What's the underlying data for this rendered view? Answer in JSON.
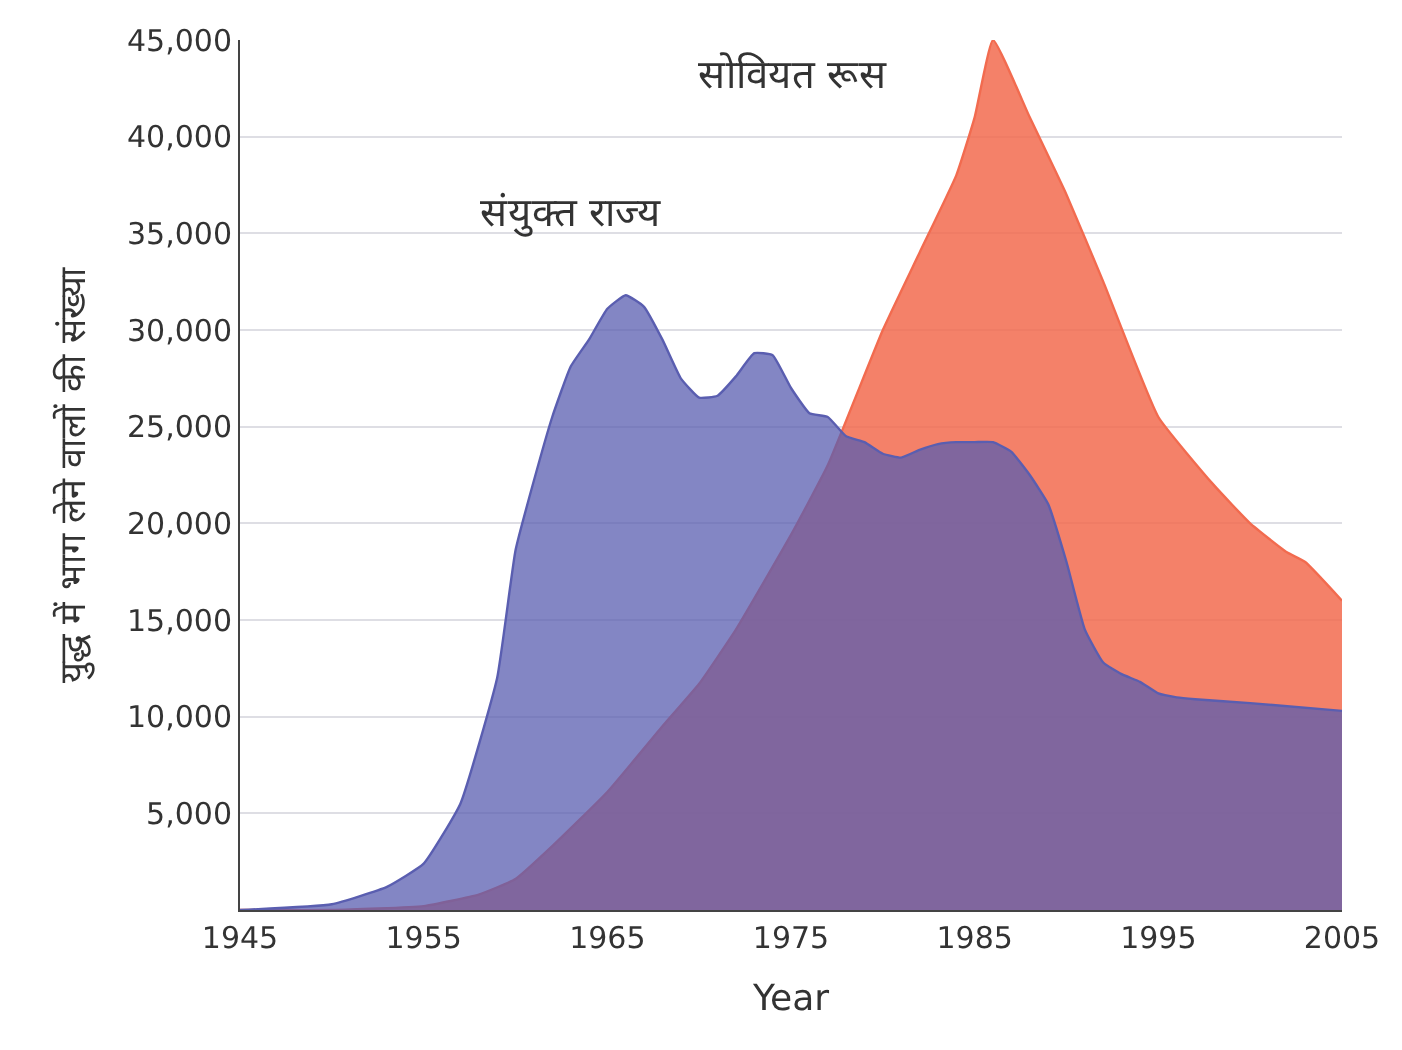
{
  "chart_data": {
    "type": "area",
    "xlabel": "Year",
    "ylabel": "युद्ध में भाग लेने वालों की संख्या",
    "xlim": [
      1945,
      2005
    ],
    "xticks": [
      1945,
      1955,
      1965,
      1975,
      1985,
      1995,
      2005
    ],
    "ylim": [
      0,
      45000
    ],
    "yticks": [
      {
        "value": 5000,
        "label": "5,000"
      },
      {
        "value": 10000,
        "label": "10,000"
      },
      {
        "value": 15000,
        "label": "15,000"
      },
      {
        "value": 20000,
        "label": "20,000"
      },
      {
        "value": 25000,
        "label": "25,000"
      },
      {
        "value": 30000,
        "label": "30,000"
      },
      {
        "value": 35000,
        "label": "35,000"
      },
      {
        "value": 40000,
        "label": "40,000"
      },
      {
        "value": 45000,
        "label": "45,000"
      }
    ],
    "grid": "y",
    "legend": false,
    "series": [
      {
        "name": "सोवियत रूस",
        "color": "#f26b4f",
        "x": [
          1945,
          1950,
          1955,
          1958,
          1960,
          1962,
          1965,
          1968,
          1970,
          1972,
          1975,
          1977,
          1980,
          1982,
          1984,
          1985,
          1986,
          1988,
          1990,
          1992,
          1995,
          1998,
          2000,
          2002,
          2003,
          2005
        ],
        "values": [
          0,
          0,
          200,
          800,
          1600,
          3300,
          6100,
          9500,
          11700,
          14500,
          19400,
          23000,
          30000,
          34000,
          38000,
          41000,
          45000,
          41000,
          37000,
          32500,
          25500,
          22000,
          20000,
          18500,
          18000,
          16000
        ]
      },
      {
        "name": "संयुक्त राज्य",
        "color": "#5a5eb0",
        "x": [
          1945,
          1950,
          1953,
          1955,
          1957,
          1959,
          1960,
          1961,
          1962,
          1963,
          1964,
          1965,
          1966,
          1967,
          1968,
          1969,
          1970,
          1971,
          1972,
          1973,
          1974,
          1975,
          1976,
          1977,
          1978,
          1979,
          1980,
          1981,
          1982,
          1983,
          1984,
          1985,
          1986,
          1987,
          1988,
          1989,
          1990,
          1991,
          1992,
          1993,
          1994,
          1995,
          1996,
          1997,
          2000,
          2005
        ],
        "values": [
          0,
          300,
          1200,
          2400,
          5500,
          12000,
          18600,
          22200,
          25500,
          28100,
          29500,
          31100,
          31800,
          31200,
          29500,
          27500,
          26500,
          26600,
          27600,
          28800,
          28700,
          27000,
          25700,
          25500,
          24500,
          24200,
          23600,
          23400,
          23800,
          24100,
          24200,
          24200,
          24200,
          23700,
          22500,
          21000,
          18000,
          14500,
          12800,
          12200,
          11800,
          11200,
          11000,
          10900,
          10700,
          10300
        ]
      }
    ]
  }
}
